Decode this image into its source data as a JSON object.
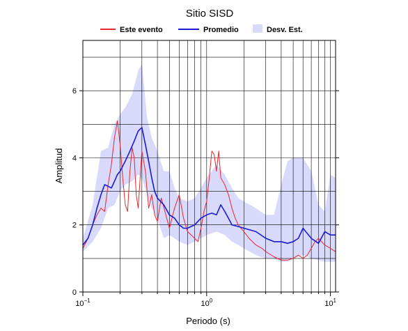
{
  "chart_data": {
    "type": "line",
    "title": "Sitio SISD",
    "xlabel": "Periodo (s)",
    "ylabel": "Amplitud",
    "xscale": "log",
    "xlim": [
      0.1,
      11
    ],
    "ylim": [
      0,
      7.5
    ],
    "grid": true,
    "legend_position": "top",
    "x_ticks": [
      {
        "value": 0.1,
        "base": "10",
        "exp": "−1"
      },
      {
        "value": 1,
        "base": "10",
        "exp": "0"
      },
      {
        "value": 10,
        "base": "10",
        "exp": "1"
      }
    ],
    "y_ticks": [
      0,
      2,
      4,
      6
    ],
    "legend": [
      {
        "label": "Este evento",
        "kind": "line",
        "color": "#e8262c"
      },
      {
        "label": "Promedio",
        "kind": "line",
        "color": "#1a1ad6"
      },
      {
        "label": "Desv. Est.",
        "kind": "band",
        "color": "#d9d9fb"
      }
    ],
    "series": [
      {
        "name": "Este evento",
        "color": "#e8262c",
        "x": [
          0.1,
          0.11,
          0.12,
          0.13,
          0.14,
          0.15,
          0.16,
          0.17,
          0.18,
          0.19,
          0.2,
          0.21,
          0.22,
          0.23,
          0.24,
          0.25,
          0.26,
          0.27,
          0.28,
          0.3,
          0.32,
          0.34,
          0.36,
          0.38,
          0.4,
          0.43,
          0.46,
          0.5,
          0.55,
          0.6,
          0.65,
          0.7,
          0.75,
          0.8,
          0.85,
          0.9,
          0.95,
          1.0,
          1.05,
          1.1,
          1.15,
          1.2,
          1.25,
          1.3,
          1.4,
          1.5,
          1.6,
          1.7,
          1.8,
          2.0,
          2.2,
          2.5,
          2.8,
          3.0,
          3.5,
          4.0,
          4.5,
          5.0,
          5.5,
          6.0,
          6.5,
          7.0,
          7.5,
          8.0,
          9.0,
          10.0,
          11.0
        ],
        "values": [
          1.3,
          1.6,
          2.0,
          2.3,
          2.5,
          2.4,
          3.2,
          3.8,
          4.6,
          5.1,
          4.4,
          3.4,
          2.6,
          2.4,
          3.6,
          4.3,
          4.0,
          2.9,
          2.5,
          4.2,
          3.6,
          2.5,
          2.9,
          2.3,
          2.1,
          2.8,
          2.4,
          1.9,
          2.5,
          2.9,
          2.2,
          1.8,
          1.7,
          1.6,
          1.5,
          1.9,
          2.4,
          2.7,
          3.4,
          4.2,
          4.1,
          3.6,
          4.2,
          3.4,
          3.2,
          2.9,
          2.5,
          2.2,
          2.0,
          1.8,
          1.6,
          1.4,
          1.3,
          1.2,
          1.05,
          0.95,
          0.95,
          1.0,
          1.1,
          1.0,
          1.1,
          1.3,
          1.5,
          1.6,
          1.4,
          1.3,
          1.2
        ]
      },
      {
        "name": "Promedio",
        "color": "#1a1ad6",
        "x": [
          0.1,
          0.11,
          0.12,
          0.13,
          0.14,
          0.15,
          0.16,
          0.17,
          0.18,
          0.19,
          0.2,
          0.22,
          0.24,
          0.26,
          0.28,
          0.3,
          0.32,
          0.34,
          0.36,
          0.38,
          0.4,
          0.45,
          0.5,
          0.55,
          0.6,
          0.65,
          0.7,
          0.8,
          0.9,
          1.0,
          1.1,
          1.2,
          1.3,
          1.4,
          1.5,
          1.6,
          1.8,
          2.0,
          2.5,
          3.0,
          3.5,
          4.0,
          4.5,
          5.0,
          5.5,
          6.0,
          7.0,
          8.0,
          9.0,
          10.0,
          11.0
        ],
        "values": [
          1.4,
          1.6,
          2.0,
          2.5,
          2.9,
          3.2,
          3.15,
          3.1,
          3.3,
          3.5,
          3.6,
          3.9,
          4.2,
          4.5,
          4.8,
          4.9,
          4.4,
          3.9,
          3.4,
          3.0,
          2.8,
          2.6,
          2.3,
          2.2,
          2.0,
          1.9,
          1.9,
          2.0,
          2.2,
          2.3,
          2.35,
          2.3,
          2.6,
          2.4,
          2.2,
          2.0,
          1.95,
          1.9,
          1.8,
          1.6,
          1.5,
          1.5,
          1.45,
          1.5,
          1.6,
          1.9,
          1.6,
          1.45,
          1.8,
          1.7,
          1.7
        ]
      }
    ],
    "band": {
      "name": "Desv. Est.",
      "x": [
        0.1,
        0.12,
        0.14,
        0.16,
        0.18,
        0.2,
        0.22,
        0.25,
        0.28,
        0.3,
        0.33,
        0.36,
        0.4,
        0.45,
        0.5,
        0.55,
        0.6,
        0.7,
        0.8,
        0.9,
        1.0,
        1.2,
        1.4,
        1.6,
        1.8,
        2.0,
        2.5,
        3.0,
        3.5,
        4.0,
        4.5,
        5.0,
        6.0,
        7.0,
        8.0,
        9.0,
        10.0,
        11.0
      ],
      "upper": [
        1.6,
        2.6,
        4.2,
        4.3,
        5.0,
        5.3,
        5.5,
        5.9,
        6.6,
        6.8,
        5.2,
        4.6,
        4.2,
        3.6,
        3.6,
        3.1,
        2.8,
        2.7,
        2.8,
        3.1,
        3.4,
        3.8,
        3.5,
        3.1,
        2.8,
        2.7,
        2.5,
        2.3,
        2.3,
        3.2,
        3.9,
        4.0,
        4.0,
        3.6,
        2.6,
        2.4,
        3.5,
        3.4
      ],
      "lower": [
        1.2,
        1.5,
        1.9,
        2.5,
        2.6,
        3.0,
        3.2,
        3.3,
        3.5,
        3.4,
        2.9,
        2.5,
        2.2,
        1.6,
        1.7,
        1.6,
        1.5,
        1.4,
        1.5,
        1.6,
        1.7,
        1.8,
        1.7,
        1.5,
        1.4,
        1.3,
        1.1,
        1.0,
        1.0,
        0.9,
        0.9,
        1.0,
        1.1,
        1.0,
        0.95,
        0.9,
        0.9,
        0.9
      ]
    }
  }
}
